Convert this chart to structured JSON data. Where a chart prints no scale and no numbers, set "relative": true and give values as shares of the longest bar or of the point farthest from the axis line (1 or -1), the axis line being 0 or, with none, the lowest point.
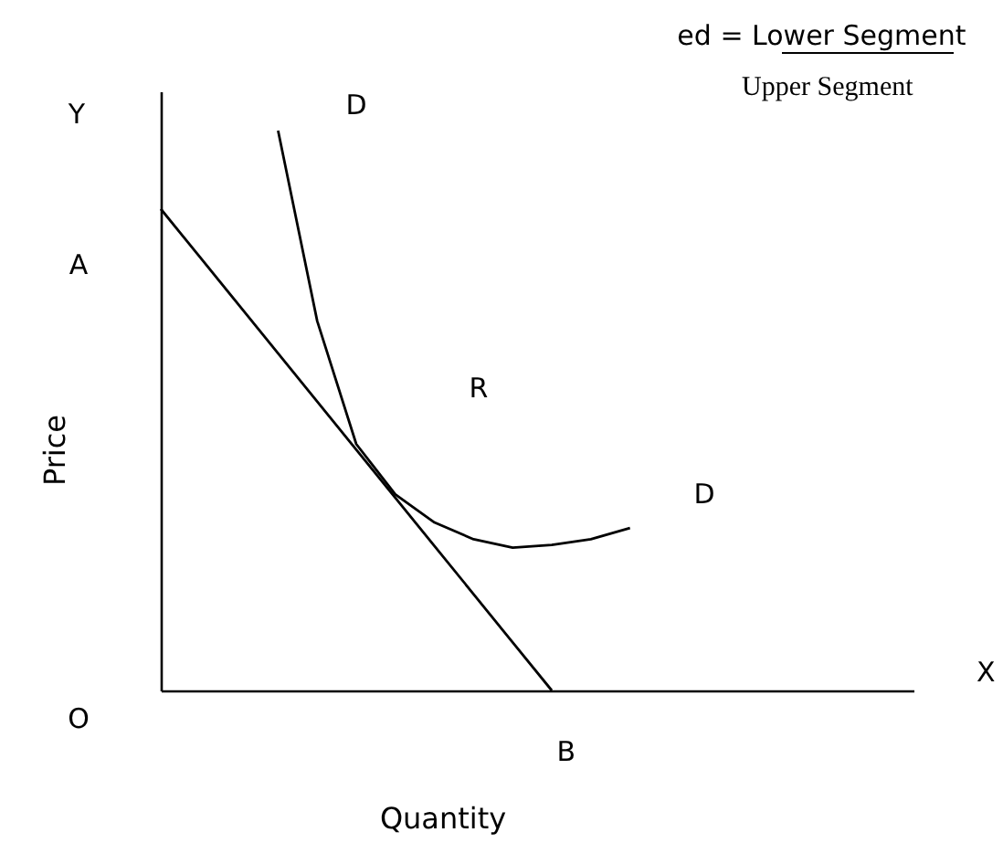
{
  "chart_data": {
    "type": "line",
    "relative": true,
    "xlabel": "Quantity",
    "ylabel": "Price",
    "categories": [
      null,
      null,
      null,
      null,
      null,
      null,
      null,
      null,
      null,
      null,
      null,
      null,
      null,
      null,
      null,
      null,
      null,
      null,
      null,
      null
    ],
    "series": [
      {
        "color": "#000000",
        "values": [
          0.86,
          0.774,
          0.688,
          0.602,
          0.516,
          0.43,
          0.344,
          0.258,
          0.172,
          0.086,
          0,
          null,
          null,
          null,
          null,
          null,
          null,
          null,
          null,
          null
        ]
      },
      {
        "color": "#000000",
        "values": [
          null,
          null,
          null,
          1.0,
          0.66,
          0.44,
          0.35,
          0.3,
          0.27,
          0.255,
          0.26,
          0.27,
          0.29,
          null,
          null,
          null,
          null,
          null,
          null,
          null
        ]
      }
    ],
    "annotations": [
      "ed = Lower Segment",
      "Upper Segment",
      "Y",
      "D",
      "A",
      "R",
      "D",
      "O",
      "X",
      "B"
    ],
    "grid": false,
    "marker": "none",
    "line_style": "solid"
  }
}
